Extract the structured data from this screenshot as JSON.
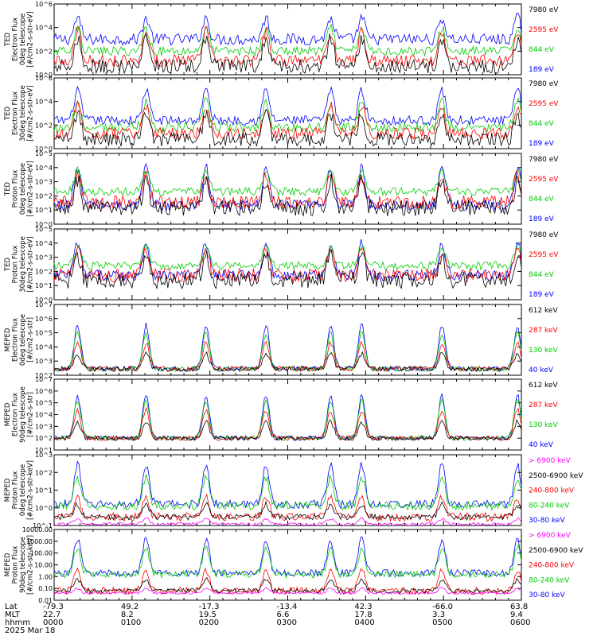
{
  "footer": {
    "row_labels": [
      "Lat",
      "MLT",
      "hhmm"
    ],
    "date": "2025 Mar 18",
    "columns": [
      {
        "lat": "-79.3",
        "mlt": "22.7",
        "hhmm": "0000"
      },
      {
        "lat": "49.2",
        "mlt": "8.2",
        "hhmm": "0100"
      },
      {
        "lat": "-17.3",
        "mlt": "19.5",
        "hhmm": "0200"
      },
      {
        "lat": "-13.4",
        "mlt": "6.6",
        "hhmm": "0300"
      },
      {
        "lat": "42.3",
        "mlt": "17.8",
        "hhmm": "0400"
      },
      {
        "lat": "-66.0",
        "mlt": "3.3",
        "hhmm": "0500"
      },
      {
        "lat": "63.8",
        "mlt": "9.4",
        "hhmm": "0600"
      }
    ]
  },
  "chart_data": [
    {
      "type": "line",
      "title": "",
      "ylabel": [
        "TED",
        "Electron Flux",
        "0deg telescope",
        "[#/cm2-s-str-eV]"
      ],
      "yticks": [
        "10^0",
        "10^2",
        "10^4",
        "10^6"
      ],
      "ylim_log10": [
        0,
        6
      ],
      "xlim_hours": [
        0,
        6
      ],
      "legend": [
        {
          "label": "7980 eV",
          "color": "#000000"
        },
        {
          "label": "2595 eV",
          "color": "#ff0000"
        },
        {
          "label": "844 eV",
          "color": "#00cc00"
        },
        {
          "label": "189 eV",
          "color": "#0000ff"
        }
      ],
      "series": [
        {
          "name": "189 eV",
          "color": "#0000ff",
          "base": 3.0,
          "amp": 1.8,
          "noise": 0.5
        },
        {
          "name": "844 eV",
          "color": "#00cc00",
          "base": 2.0,
          "amp": 2.0,
          "noise": 0.4
        },
        {
          "name": "2595 eV",
          "color": "#ff0000",
          "base": 1.2,
          "amp": 2.5,
          "noise": 0.5
        },
        {
          "name": "7980 eV",
          "color": "#000000",
          "base": 0.7,
          "amp": 2.3,
          "noise": 0.6
        }
      ]
    },
    {
      "type": "line",
      "title": "",
      "ylabel": [
        "TED",
        "Electron Flux",
        "30deg telescope",
        "[#/cm2-s-str-eV]"
      ],
      "yticks": [
        "10^0",
        "10^2",
        "10^4",
        "10^6"
      ],
      "ylim_log10": [
        0,
        6
      ],
      "xlim_hours": [
        0,
        6
      ],
      "legend": [
        {
          "label": "7980 eV",
          "color": "#000000"
        },
        {
          "label": "2595 eV",
          "color": "#ff0000"
        },
        {
          "label": "844 eV",
          "color": "#00cc00"
        },
        {
          "label": "189 eV",
          "color": "#0000ff"
        }
      ],
      "series": [
        {
          "name": "189 eV",
          "color": "#0000ff",
          "base": 2.4,
          "amp": 2.6,
          "noise": 0.4
        },
        {
          "name": "844 eV",
          "color": "#00cc00",
          "base": 1.8,
          "amp": 2.2,
          "noise": 0.4
        },
        {
          "name": "2595 eV",
          "color": "#ff0000",
          "base": 1.3,
          "amp": 2.4,
          "noise": 0.5
        },
        {
          "name": "7980 eV",
          "color": "#000000",
          "base": 0.8,
          "amp": 2.1,
          "noise": 0.6
        }
      ]
    },
    {
      "type": "line",
      "title": "",
      "ylabel": [
        "TED",
        "Proton Flux",
        "0deg telescope",
        "[#/cm2-s-str-eV]"
      ],
      "yticks": [
        "10^0",
        "10^1",
        "10^2",
        "10^3",
        "10^4",
        "10^5"
      ],
      "ylim_log10": [
        -0.2,
        5
      ],
      "xlim_hours": [
        0,
        6
      ],
      "legend": [
        {
          "label": "7980 eV",
          "color": "#000000"
        },
        {
          "label": "2595 eV",
          "color": "#ff0000"
        },
        {
          "label": "844 eV",
          "color": "#00cc00"
        },
        {
          "label": "189 eV",
          "color": "#0000ff"
        }
      ],
      "series": [
        {
          "name": "189 eV",
          "color": "#0000ff",
          "base": 1.2,
          "amp": 2.8,
          "noise": 0.4
        },
        {
          "name": "844 eV",
          "color": "#00cc00",
          "base": 2.2,
          "amp": 1.6,
          "noise": 0.3
        },
        {
          "name": "2595 eV",
          "color": "#ff0000",
          "base": 1.4,
          "amp": 2.0,
          "noise": 0.5
        },
        {
          "name": "7980 eV",
          "color": "#000000",
          "base": 1.0,
          "amp": 2.0,
          "noise": 0.6
        }
      ]
    },
    {
      "type": "line",
      "title": "",
      "ylabel": [
        "TED",
        "Proton Flux",
        "30deg telescope",
        "[#/cm2-s-str-eV]"
      ],
      "yticks": [
        "10^0",
        "10^1",
        "10^2",
        "10^3",
        "10^4",
        "10^5"
      ],
      "ylim_log10": [
        -0.2,
        5
      ],
      "xlim_hours": [
        0,
        6
      ],
      "legend": [
        {
          "label": "7980 eV",
          "color": "#000000"
        },
        {
          "label": "2595 eV",
          "color": "#ff0000"
        },
        {
          "label": "844 eV",
          "color": "#00cc00"
        },
        {
          "label": "189 eV",
          "color": "#0000ff"
        }
      ],
      "series": [
        {
          "name": "189 eV",
          "color": "#0000ff",
          "base": 1.6,
          "amp": 2.4,
          "noise": 0.4
        },
        {
          "name": "844 eV",
          "color": "#00cc00",
          "base": 2.3,
          "amp": 1.4,
          "noise": 0.3
        },
        {
          "name": "2595 eV",
          "color": "#ff0000",
          "base": 1.6,
          "amp": 1.8,
          "noise": 0.5
        },
        {
          "name": "7980 eV",
          "color": "#000000",
          "base": 1.2,
          "amp": 1.9,
          "noise": 0.6
        }
      ]
    },
    {
      "type": "line",
      "title": "",
      "ylabel": [
        "MEPED",
        "Electron Flux",
        "0deg telescope",
        "[#/cm2-s-str]"
      ],
      "yticks": [
        "10^2",
        "10^3",
        "10^4",
        "10^5",
        "10^6",
        "10^7"
      ],
      "ylim_log10": [
        1.5,
        7
      ],
      "xlim_hours": [
        0,
        6
      ],
      "legend": [
        {
          "label": "612 keV",
          "color": "#000000"
        },
        {
          "label": "287 keV",
          "color": "#ff0000"
        },
        {
          "label": "130 keV",
          "color": "#00cc00"
        },
        {
          "label": "40 keV",
          "color": "#0000ff"
        }
      ],
      "series": [
        {
          "name": "40 keV",
          "color": "#0000ff",
          "base": 2.0,
          "amp": 3.4,
          "noise": 0.2
        },
        {
          "name": "130 keV",
          "color": "#00cc00",
          "base": 2.0,
          "amp": 2.8,
          "noise": 0.2
        },
        {
          "name": "287 keV",
          "color": "#ff0000",
          "base": 2.0,
          "amp": 2.0,
          "noise": 0.2
        },
        {
          "name": "612 keV",
          "color": "#000000",
          "base": 2.0,
          "amp": 1.2,
          "noise": 0.2
        }
      ]
    },
    {
      "type": "line",
      "title": "",
      "ylabel": [
        "MEPED",
        "Electron Flux",
        "90deg telescope",
        "[#/cm2-s-str]"
      ],
      "yticks": [
        "10^1",
        "10^2",
        "10^3",
        "10^4",
        "10^5",
        "10^6",
        "10^7"
      ],
      "ylim_log10": [
        1,
        7
      ],
      "xlim_hours": [
        0,
        6
      ],
      "legend": [
        {
          "label": "612 keV",
          "color": "#000000"
        },
        {
          "label": "287 keV",
          "color": "#ff0000"
        },
        {
          "label": "130 keV",
          "color": "#00cc00"
        },
        {
          "label": "40 keV",
          "color": "#0000ff"
        }
      ],
      "series": [
        {
          "name": "40 keV",
          "color": "#0000ff",
          "base": 2.0,
          "amp": 3.6,
          "noise": 0.2
        },
        {
          "name": "130 keV",
          "color": "#00cc00",
          "base": 2.0,
          "amp": 3.2,
          "noise": 0.2
        },
        {
          "name": "287 keV",
          "color": "#ff0000",
          "base": 2.0,
          "amp": 2.4,
          "noise": 0.2
        },
        {
          "name": "612 keV",
          "color": "#000000",
          "base": 2.0,
          "amp": 1.4,
          "noise": 0.2
        }
      ]
    },
    {
      "type": "line",
      "title": "",
      "ylabel": [
        "MEPED",
        "Proton Flux",
        "0deg telescope",
        "[#/cm2-s-str-keV]"
      ],
      "yticks": [
        "10^-1",
        "10^0",
        "10^1",
        "10^2",
        "10^3"
      ],
      "ylim_log10": [
        -1.5,
        3.5
      ],
      "xlim_hours": [
        0,
        6
      ],
      "legend": [
        {
          "label": "> 6900 keV",
          "color": "#ff00ff"
        },
        {
          "label": "2500-6900 keV",
          "color": "#000000"
        },
        {
          "label": "240-800 keV",
          "color": "#ff0000"
        },
        {
          "label": "80-240 keV",
          "color": "#00cc00"
        },
        {
          "label": "30-80 keV",
          "color": "#0000ff"
        }
      ],
      "series": [
        {
          "name": "30-80 keV",
          "color": "#0000ff",
          "base": 0.0,
          "amp": 2.8,
          "noise": 0.3
        },
        {
          "name": "80-240 keV",
          "color": "#00cc00",
          "base": -0.1,
          "amp": 2.0,
          "noise": 0.3
        },
        {
          "name": "240-800 keV",
          "color": "#ff0000",
          "base": -0.9,
          "amp": 1.4,
          "noise": 0.3
        },
        {
          "name": "2500-6900 keV",
          "color": "#000000",
          "base": -0.9,
          "amp": 0.9,
          "noise": 0.2
        },
        {
          "name": "> 6900 keV",
          "color": "#ff00ff",
          "base": -1.4,
          "amp": 0.4,
          "noise": 0.1
        }
      ]
    },
    {
      "type": "line",
      "title": "",
      "ylabel": [
        "MEPED",
        "Proton Flux",
        "90deg telescope",
        "[#/cm2-s-str-keV]"
      ],
      "yticks": [
        "0.01",
        "0.10",
        "1.00",
        "10.00",
        "100.00",
        "1000.00",
        "10000.00"
      ],
      "ylim_log10": [
        -2,
        4
      ],
      "xlim_hours": [
        0,
        6
      ],
      "legend": [
        {
          "label": "> 6900 keV",
          "color": "#ff00ff"
        },
        {
          "label": "2500-6900 keV",
          "color": "#000000"
        },
        {
          "label": "240-800 keV",
          "color": "#ff0000"
        },
        {
          "label": "80-240 keV",
          "color": "#00cc00"
        },
        {
          "label": "30-80 keV",
          "color": "#0000ff"
        }
      ],
      "series": [
        {
          "name": "30-80 keV",
          "color": "#0000ff",
          "base": 0.3,
          "amp": 2.9,
          "noise": 0.3
        },
        {
          "name": "80-240 keV",
          "color": "#00cc00",
          "base": 0.2,
          "amp": 2.3,
          "noise": 0.3
        },
        {
          "name": "240-800 keV",
          "color": "#ff0000",
          "base": -1.2,
          "amp": 1.8,
          "noise": 0.3
        },
        {
          "name": "2500-6900 keV",
          "color": "#000000",
          "base": -1.2,
          "amp": 1.0,
          "noise": 0.2
        },
        {
          "name": "> 6900 keV",
          "color": "#ff00ff",
          "base": -1.4,
          "amp": 0.4,
          "noise": 0.1
        }
      ]
    }
  ]
}
